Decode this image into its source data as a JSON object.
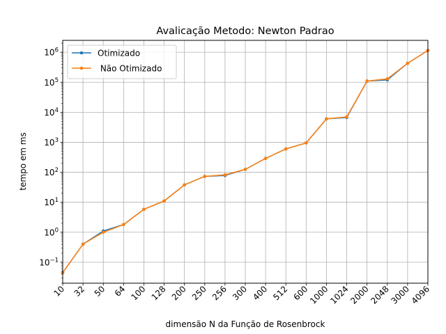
{
  "chart_data": {
    "type": "line",
    "title": "Avalicação Metodo:  Newton Padrao",
    "xlabel": "dimensão N da Função de Rosenbrock",
    "ylabel": "tempo em ms",
    "yscale": "log",
    "ylim": [
      0.02,
      2500000
    ],
    "y_ticks": [
      {
        "value": 0.1,
        "base": "10",
        "exp": "−1"
      },
      {
        "value": 1,
        "base": "10",
        "exp": "0"
      },
      {
        "value": 10,
        "base": "10",
        "exp": "1"
      },
      {
        "value": 100,
        "base": "10",
        "exp": "2"
      },
      {
        "value": 1000,
        "base": "10",
        "exp": "3"
      },
      {
        "value": 10000,
        "base": "10",
        "exp": "4"
      },
      {
        "value": 100000,
        "base": "10",
        "exp": "5"
      },
      {
        "value": 1000000,
        "base": "10",
        "exp": "6"
      }
    ],
    "categories": [
      "10",
      "32",
      "50",
      "64",
      "100",
      "128",
      "200",
      "250",
      "256",
      "300",
      "400",
      "512",
      "600",
      "1000",
      "1024",
      "2000",
      "2048",
      "3000",
      "4096"
    ],
    "grid": true,
    "legend_position": "top-left",
    "series": [
      {
        "name": "Otimizado",
        "color": "#1f77b4",
        "values": [
          0.045,
          0.4,
          1.1,
          1.8,
          5.8,
          11,
          38,
          73,
          78,
          125,
          290,
          600,
          950,
          6000,
          6700,
          110000,
          120000,
          430000,
          1150000
        ]
      },
      {
        "name": " Não Otimizado",
        "color": "#ff7f0e",
        "values": [
          0.045,
          0.4,
          1.0,
          1.8,
          5.8,
          11,
          38,
          73,
          82,
          125,
          290,
          600,
          950,
          6000,
          7000,
          110000,
          130000,
          430000,
          1150000
        ]
      }
    ]
  }
}
